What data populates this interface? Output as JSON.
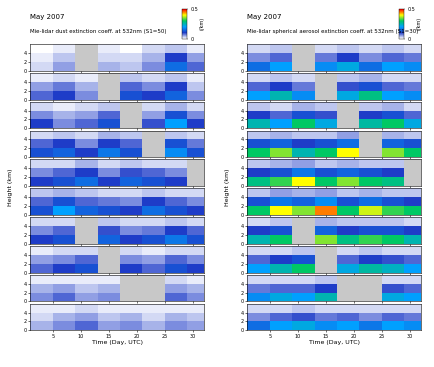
{
  "chart_data": [
    {
      "type": "heatmap",
      "title": "May 2007",
      "subtitle": "Mie-lidar dust extinction coeff. at 532nm (S1=50)",
      "xlabel": "Time (Day, UTC)",
      "ylabel": "Height (km)",
      "xlim": [
        1,
        32
      ],
      "xticks": [
        5,
        10,
        15,
        20,
        25,
        30
      ],
      "ylim": [
        0,
        6
      ],
      "yticks": [
        0,
        2,
        4
      ],
      "x_edges": [
        1,
        5,
        9,
        13,
        17,
        21,
        25,
        29,
        32
      ],
      "y_edges": [
        0,
        2,
        4,
        6
      ],
      "color_range": [
        0,
        0.5
      ],
      "color_ticks": [
        0,
        0.5
      ],
      "color_label": "(/km)",
      "cells": [
        [
          [
            0.02,
            0.05,
            null,
            0.04,
            0.03,
            0.06,
            0.15,
            0.08
          ],
          [
            0.01,
            0.03,
            null,
            0.02,
            0.02,
            0.04,
            0.1,
            0.05
          ],
          [
            0.0,
            0.01,
            null,
            0.01,
            0.0,
            0.02,
            0.03,
            0.01
          ]
        ],
        [
          [
            0.08,
            0.1,
            0.06,
            null,
            0.12,
            0.1,
            0.14,
            0.06
          ],
          [
            0.05,
            0.07,
            0.04,
            null,
            0.08,
            0.06,
            0.1,
            0.03
          ],
          [
            0.01,
            0.02,
            0.01,
            null,
            0.03,
            0.02,
            0.03,
            0.01
          ]
        ],
        [
          [
            0.1,
            0.06,
            0.08,
            0.12,
            null,
            0.09,
            0.2,
            0.1
          ],
          [
            0.06,
            0.04,
            0.05,
            0.08,
            null,
            0.05,
            0.12,
            0.06
          ],
          [
            0.02,
            0.01,
            0.02,
            0.03,
            null,
            0.02,
            0.04,
            0.02
          ]
        ],
        [
          [
            0.12,
            0.14,
            0.1,
            0.16,
            0.12,
            null,
            0.18,
            0.12
          ],
          [
            0.08,
            0.1,
            0.06,
            0.1,
            0.08,
            null,
            0.12,
            0.07
          ],
          [
            0.02,
            0.03,
            0.02,
            0.04,
            0.03,
            null,
            0.03,
            0.02
          ]
        ],
        [
          [
            0.1,
            0.12,
            0.15,
            0.1,
            0.14,
            0.12,
            0.1,
            null
          ],
          [
            0.06,
            0.08,
            0.1,
            0.06,
            0.09,
            0.08,
            0.06,
            null
          ],
          [
            0.02,
            0.02,
            0.04,
            0.02,
            0.03,
            0.02,
            0.02,
            null
          ]
        ],
        [
          [
            0.12,
            0.2,
            0.14,
            0.12,
            0.1,
            0.15,
            0.12,
            0.1
          ],
          [
            0.08,
            0.12,
            0.08,
            0.07,
            0.06,
            0.1,
            0.08,
            0.06
          ],
          [
            0.03,
            0.04,
            0.03,
            0.02,
            0.02,
            0.03,
            0.02,
            0.02
          ]
        ],
        [
          [
            0.1,
            0.12,
            null,
            0.14,
            0.1,
            0.12,
            0.16,
            0.12
          ],
          [
            0.06,
            0.08,
            null,
            0.09,
            0.06,
            0.07,
            0.1,
            0.08
          ],
          [
            0.02,
            0.02,
            null,
            0.03,
            0.02,
            0.02,
            0.03,
            0.02
          ]
        ],
        [
          [
            0.08,
            0.1,
            0.12,
            null,
            0.1,
            0.08,
            0.12,
            0.1
          ],
          [
            0.05,
            0.06,
            0.08,
            null,
            0.06,
            0.05,
            0.08,
            0.06
          ],
          [
            0.01,
            0.02,
            0.02,
            null,
            0.02,
            0.01,
            0.02,
            0.02
          ]
        ],
        [
          [
            0.06,
            0.08,
            0.05,
            0.06,
            null,
            null,
            0.08,
            0.06
          ],
          [
            0.04,
            0.05,
            0.03,
            0.04,
            null,
            null,
            0.05,
            0.04
          ],
          [
            0.01,
            0.01,
            0.01,
            0.01,
            null,
            null,
            0.02,
            0.01
          ]
        ],
        [
          [
            0.04,
            0.06,
            0.08,
            0.05,
            0.06,
            0.04,
            0.06,
            0.05
          ],
          [
            0.02,
            0.04,
            0.05,
            0.03,
            0.04,
            0.02,
            0.04,
            0.03
          ],
          [
            0.01,
            0.01,
            0.02,
            0.01,
            0.01,
            0.01,
            0.01,
            0.01
          ]
        ]
      ]
    },
    {
      "type": "heatmap",
      "title": "May 2007",
      "subtitle": "Mie-lidar spherical aerosol extinction coeff. at 532nm (S1=30)",
      "xlabel": "Time (Day, UTC)",
      "ylabel": "Height (km)",
      "xlim": [
        1,
        32
      ],
      "xticks": [
        5,
        10,
        15,
        20,
        25,
        30
      ],
      "ylim": [
        0,
        6
      ],
      "yticks": [
        0,
        2,
        4
      ],
      "x_edges": [
        1,
        5,
        9,
        13,
        17,
        21,
        25,
        29,
        32
      ],
      "y_edges": [
        0,
        2,
        4,
        6
      ],
      "color_range": [
        0,
        0.5
      ],
      "color_ticks": [
        0,
        0.5
      ],
      "color_label": "(/km)",
      "cells": [
        [
          [
            0.15,
            0.2,
            null,
            0.18,
            0.22,
            0.15,
            0.2,
            0.18
          ],
          [
            0.06,
            0.08,
            null,
            0.07,
            0.1,
            0.06,
            0.08,
            0.07
          ],
          [
            0.02,
            0.03,
            null,
            0.02,
            0.03,
            0.02,
            0.03,
            0.02
          ]
        ],
        [
          [
            0.2,
            0.25,
            0.18,
            null,
            0.22,
            0.28,
            0.2,
            0.18
          ],
          [
            0.08,
            0.1,
            0.07,
            null,
            0.09,
            0.12,
            0.08,
            0.07
          ],
          [
            0.02,
            0.03,
            0.02,
            null,
            0.03,
            0.04,
            0.02,
            0.02
          ]
        ],
        [
          [
            0.25,
            0.2,
            0.3,
            0.22,
            null,
            0.26,
            0.3,
            0.22
          ],
          [
            0.1,
            0.08,
            0.12,
            0.09,
            null,
            0.1,
            0.12,
            0.08
          ],
          [
            0.03,
            0.02,
            0.04,
            0.03,
            null,
            0.03,
            0.04,
            0.02
          ]
        ],
        [
          [
            0.3,
            0.35,
            0.25,
            0.3,
            0.4,
            null,
            0.35,
            0.3
          ],
          [
            0.12,
            0.14,
            0.1,
            0.12,
            0.15,
            null,
            0.14,
            0.12
          ],
          [
            0.03,
            0.04,
            0.03,
            0.03,
            0.05,
            null,
            0.04,
            0.03
          ]
        ],
        [
          [
            0.28,
            0.32,
            0.4,
            0.3,
            0.35,
            0.3,
            0.28,
            null
          ],
          [
            0.1,
            0.12,
            0.16,
            0.12,
            0.14,
            0.12,
            0.1,
            null
          ],
          [
            0.03,
            0.04,
            0.05,
            0.03,
            0.04,
            0.03,
            0.03,
            null
          ]
        ],
        [
          [
            0.3,
            0.4,
            0.35,
            0.45,
            0.3,
            0.38,
            0.32,
            0.3
          ],
          [
            0.12,
            0.16,
            0.14,
            0.18,
            0.12,
            0.15,
            0.12,
            0.1
          ],
          [
            0.03,
            0.05,
            0.04,
            0.05,
            0.03,
            0.04,
            0.03,
            0.03
          ]
        ],
        [
          [
            0.25,
            0.3,
            null,
            0.35,
            0.28,
            0.32,
            0.3,
            0.25
          ],
          [
            0.1,
            0.12,
            null,
            0.14,
            0.1,
            0.12,
            0.12,
            0.1
          ],
          [
            0.02,
            0.03,
            null,
            0.04,
            0.03,
            0.03,
            0.03,
            0.02
          ]
        ],
        [
          [
            0.2,
            0.25,
            0.3,
            null,
            0.22,
            0.26,
            0.24,
            0.2
          ],
          [
            0.08,
            0.1,
            0.12,
            null,
            0.08,
            0.1,
            0.09,
            0.08
          ],
          [
            0.02,
            0.02,
            0.03,
            null,
            0.02,
            0.03,
            0.02,
            0.02
          ]
        ],
        [
          [
            0.18,
            0.22,
            0.2,
            0.25,
            null,
            null,
            0.22,
            0.2
          ],
          [
            0.07,
            0.08,
            0.08,
            0.1,
            null,
            null,
            0.09,
            0.08
          ],
          [
            0.02,
            0.02,
            0.02,
            0.03,
            null,
            null,
            0.02,
            0.02
          ]
        ],
        [
          [
            0.15,
            0.2,
            0.22,
            0.18,
            0.2,
            0.16,
            0.2,
            0.18
          ],
          [
            0.06,
            0.08,
            0.09,
            0.07,
            0.08,
            0.06,
            0.08,
            0.07
          ],
          [
            0.02,
            0.02,
            0.03,
            0.02,
            0.02,
            0.02,
            0.02,
            0.02
          ]
        ]
      ]
    }
  ]
}
